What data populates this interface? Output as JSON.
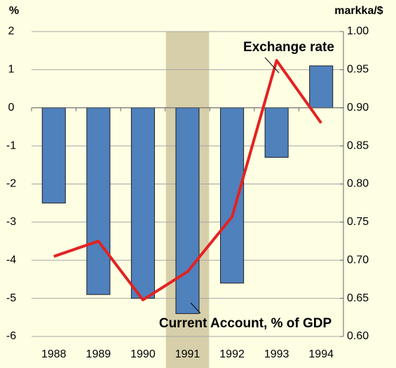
{
  "chart_data": {
    "type": "bar_line",
    "y_label": "%",
    "y2_label": "markka/$",
    "categories": [
      "1988",
      "1989",
      "1990",
      "1991",
      "1992",
      "1993",
      "1994"
    ],
    "series": [
      {
        "name": "Current Account, % of GDP",
        "type": "bar",
        "color": "#4f81bd",
        "values": [
          -2.5,
          -4.9,
          -5.0,
          -5.4,
          -4.6,
          -1.3,
          1.1
        ]
      },
      {
        "name": "Exchange rate",
        "type": "line",
        "axis": "y2",
        "color": "#e32222",
        "values": [
          0.705,
          0.725,
          0.648,
          0.685,
          0.757,
          0.962,
          0.88
        ]
      }
    ],
    "ylim": [
      -6,
      2
    ],
    "yticks": [
      -6,
      -5,
      -4,
      -3,
      -2,
      -1,
      0,
      1,
      2
    ],
    "y2lim": [
      0.6,
      1.0
    ],
    "y2ticks": [
      {
        "value": 0.6,
        "label": "0.60"
      },
      {
        "value": 0.65,
        "label": "0.65"
      },
      {
        "value": 0.7,
        "label": "0.70"
      },
      {
        "value": 0.75,
        "label": "0.75"
      },
      {
        "value": 0.8,
        "label": "0.80"
      },
      {
        "value": 0.85,
        "label": "0.85"
      },
      {
        "value": 0.9,
        "label": "0.90"
      },
      {
        "value": 0.95,
        "label": "0.95"
      },
      {
        "value": 1.0,
        "label": "1.00"
      }
    ],
    "highlight": {
      "category": "1991",
      "color": "#d6cfaa"
    },
    "grid": true
  }
}
